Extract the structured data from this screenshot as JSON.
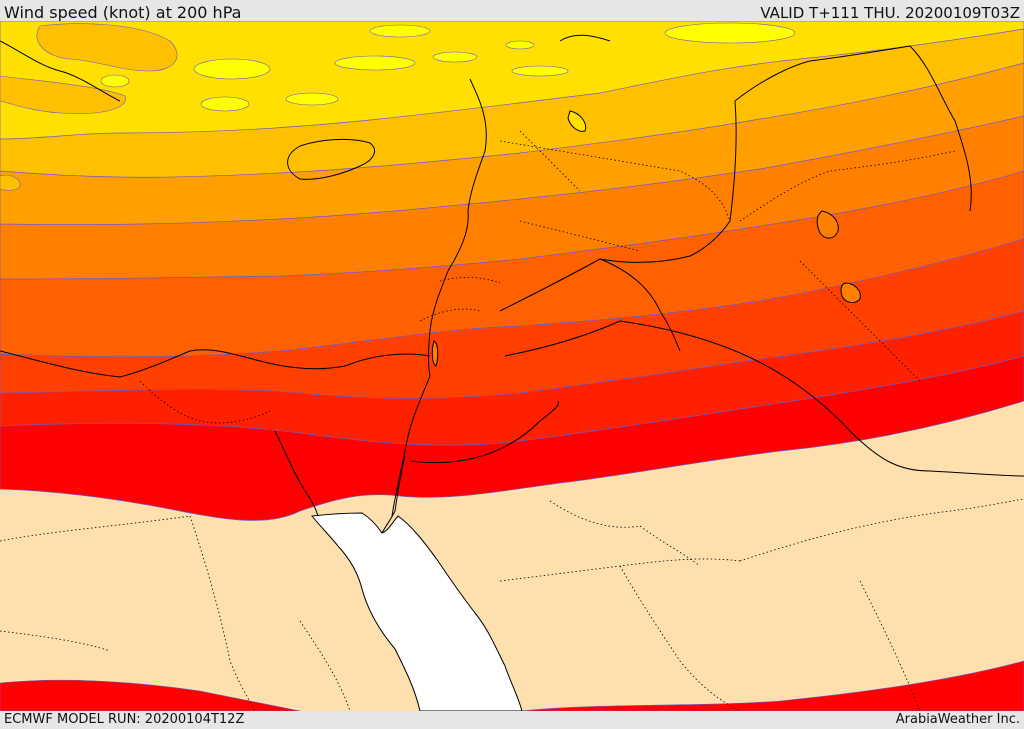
{
  "header": {
    "title": "Wind speed (knot) at 200 hPa",
    "valid": "VALID T+111 THU. 20200109T03Z"
  },
  "footer": {
    "model_run": "ECMWF MODEL RUN: 20200104T12Z",
    "credit": "ArabiaWeather Inc."
  },
  "map": {
    "colors": {
      "lightest": "#ffff00",
      "band1": "#ffe000",
      "band2": "#ffc000",
      "band3": "#ffa000",
      "band4": "#ff8000",
      "band5": "#ff6000",
      "band6": "#ff4000",
      "band7": "#ff2000",
      "band8": "#ff0000",
      "calm": "#fde0ad",
      "sea": "#ffffff"
    }
  }
}
